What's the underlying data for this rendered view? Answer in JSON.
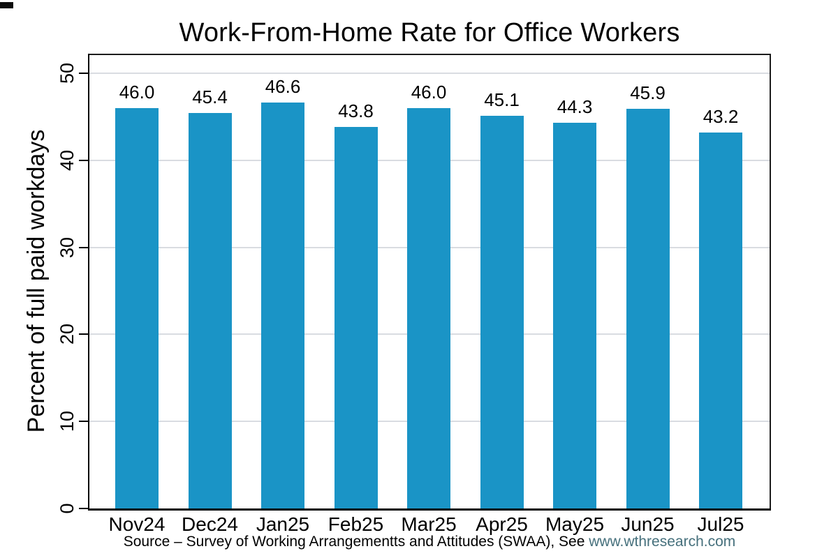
{
  "chart_data": {
    "type": "bar",
    "title": "Work-From-Home Rate for Office Workers",
    "categories": [
      "Nov24",
      "Dec24",
      "Jan25",
      "Feb25",
      "Mar25",
      "Apr25",
      "May25",
      "Jun25",
      "Jul25"
    ],
    "values": [
      46.0,
      45.4,
      46.6,
      43.8,
      46.0,
      45.1,
      44.3,
      45.9,
      43.2
    ],
    "value_labels": [
      "46.0",
      "45.4",
      "46.6",
      "43.8",
      "46.0",
      "45.1",
      "44.3",
      "45.9",
      "43.2"
    ],
    "xlabel": "",
    "ylabel": "Percent of full paid workdays",
    "ylim": [
      0,
      50
    ],
    "yticks": [
      0,
      10,
      20,
      30,
      40,
      50
    ],
    "grid": "horizontal-light-gray",
    "legend": "none",
    "bar_color": "#1a94c6",
    "source": {
      "prefix": "Source – Survey of Working Arrangementts and Attitudes (SWAA), See ",
      "link": "www.wthresearch.com"
    }
  },
  "colors": {
    "background": "#ffffff",
    "bar": "#1a94c6",
    "grid": "#d9dce1",
    "axis": "#000000",
    "plot_border": "#1c1c1c",
    "text": "#000000",
    "source_link": "#46707c"
  }
}
